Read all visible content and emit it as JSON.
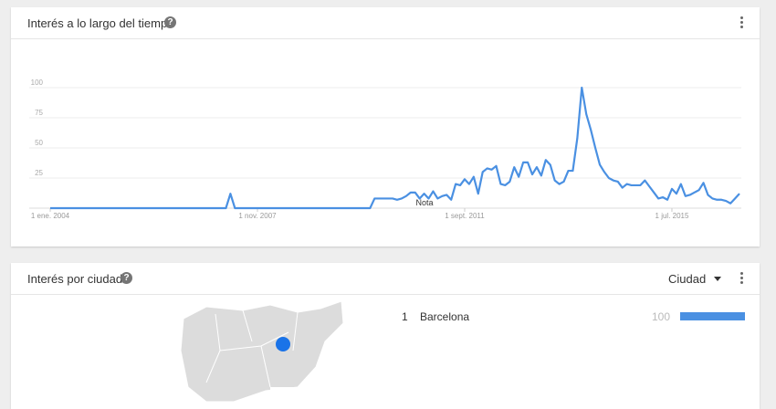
{
  "chart_data": {
    "type": "line",
    "title": "Interés a lo largo del tiempo",
    "annotation": "Nota",
    "color": "#4a90e2",
    "grid": true,
    "x": [
      "2004-01",
      "2004-02",
      "2004-03",
      "2004-04",
      "2004-05",
      "2004-06",
      "2004-07",
      "2004-08",
      "2004-09",
      "2004-10",
      "2004-11",
      "2004-12",
      "2005-01",
      "2005-02",
      "2005-03",
      "2005-04",
      "2005-05",
      "2005-06",
      "2005-07",
      "2005-08",
      "2005-09",
      "2005-10",
      "2005-11",
      "2005-12",
      "2006-01",
      "2006-02",
      "2006-03",
      "2006-04",
      "2006-05",
      "2006-06",
      "2006-07",
      "2006-08",
      "2006-09",
      "2006-10",
      "2006-11",
      "2006-12",
      "2007-01",
      "2007-02",
      "2007-03",
      "2007-04",
      "2007-05",
      "2007-06",
      "2007-07",
      "2007-08",
      "2007-09",
      "2007-10",
      "2007-11",
      "2007-12",
      "2008-01",
      "2008-02",
      "2008-03",
      "2008-04",
      "2008-05",
      "2008-06",
      "2008-07",
      "2008-08",
      "2008-09",
      "2008-10",
      "2008-11",
      "2008-12",
      "2009-01",
      "2009-02",
      "2009-03",
      "2009-04",
      "2009-05",
      "2009-06",
      "2009-07",
      "2009-08",
      "2009-09",
      "2009-10",
      "2009-11",
      "2009-12",
      "2010-01",
      "2010-02",
      "2010-03",
      "2010-04",
      "2010-05",
      "2010-06",
      "2010-07",
      "2010-08",
      "2010-09",
      "2010-10",
      "2010-11",
      "2010-12",
      "2011-01",
      "2011-02",
      "2011-03",
      "2011-04",
      "2011-05",
      "2011-06",
      "2011-07",
      "2011-08",
      "2011-09",
      "2011-10",
      "2011-11",
      "2011-12",
      "2012-01",
      "2012-02",
      "2012-03",
      "2012-04",
      "2012-05",
      "2012-06",
      "2012-07",
      "2012-08",
      "2012-09",
      "2012-10",
      "2012-11",
      "2012-12",
      "2013-01",
      "2013-02",
      "2013-03",
      "2013-04",
      "2013-05",
      "2013-06",
      "2013-07",
      "2013-08",
      "2013-09",
      "2013-10",
      "2013-11",
      "2013-12",
      "2014-01",
      "2014-02",
      "2014-03",
      "2014-04",
      "2014-05",
      "2014-06",
      "2014-07",
      "2014-08",
      "2014-09",
      "2014-10",
      "2014-11",
      "2014-12",
      "2015-01",
      "2015-02",
      "2015-03",
      "2015-04",
      "2015-05",
      "2015-06",
      "2015-07",
      "2015-08",
      "2015-09",
      "2015-10",
      "2015-11",
      "2015-12",
      "2016-01",
      "2016-02",
      "2016-03",
      "2016-04",
      "2016-05",
      "2016-06",
      "2016-07",
      "2016-08",
      "2016-09",
      "2016-10"
    ],
    "values": [
      0,
      0,
      0,
      0,
      0,
      0,
      0,
      0,
      0,
      0,
      0,
      0,
      0,
      0,
      0,
      0,
      0,
      0,
      0,
      0,
      0,
      0,
      0,
      0,
      0,
      0,
      0,
      0,
      0,
      0,
      0,
      0,
      0,
      0,
      0,
      0,
      0,
      0,
      0,
      0,
      12,
      0,
      0,
      0,
      0,
      0,
      0,
      0,
      0,
      0,
      0,
      0,
      0,
      0,
      0,
      0,
      0,
      0,
      0,
      0,
      0,
      0,
      0,
      0,
      0,
      0,
      0,
      0,
      0,
      0,
      0,
      0,
      8,
      8,
      8,
      8,
      8,
      7,
      8,
      10,
      13,
      13,
      8,
      12,
      8,
      14,
      8,
      10,
      11,
      7,
      20,
      19,
      24,
      20,
      26,
      12,
      30,
      33,
      32,
      35,
      20,
      19,
      22,
      34,
      26,
      38,
      38,
      28,
      34,
      27,
      40,
      36,
      23,
      20,
      22,
      31,
      31,
      58,
      100,
      78,
      65,
      50,
      36,
      30,
      25,
      23,
      22,
      17,
      20,
      19,
      19,
      19,
      23,
      18,
      13,
      8,
      9,
      7,
      16,
      12,
      20,
      10,
      11,
      13,
      15,
      21,
      11,
      8,
      7,
      7,
      6,
      4,
      8,
      12
    ],
    "ylim": [
      0,
      100
    ],
    "yticks": [
      25,
      50,
      75,
      100
    ],
    "xticks": [
      {
        "value": "2004-01",
        "label": "1 ene. 2004"
      },
      {
        "value": "2007-11",
        "label": "1 nov. 2007"
      },
      {
        "value": "2011-09",
        "label": "1 sept. 2011"
      },
      {
        "value": "2015-07",
        "label": "1 jul. 2015"
      }
    ]
  },
  "city_card": {
    "title": "Interés por ciudad",
    "selector": "Ciudad",
    "rows": [
      {
        "rank": "1",
        "name": "Barcelona",
        "value": 100
      }
    ]
  }
}
